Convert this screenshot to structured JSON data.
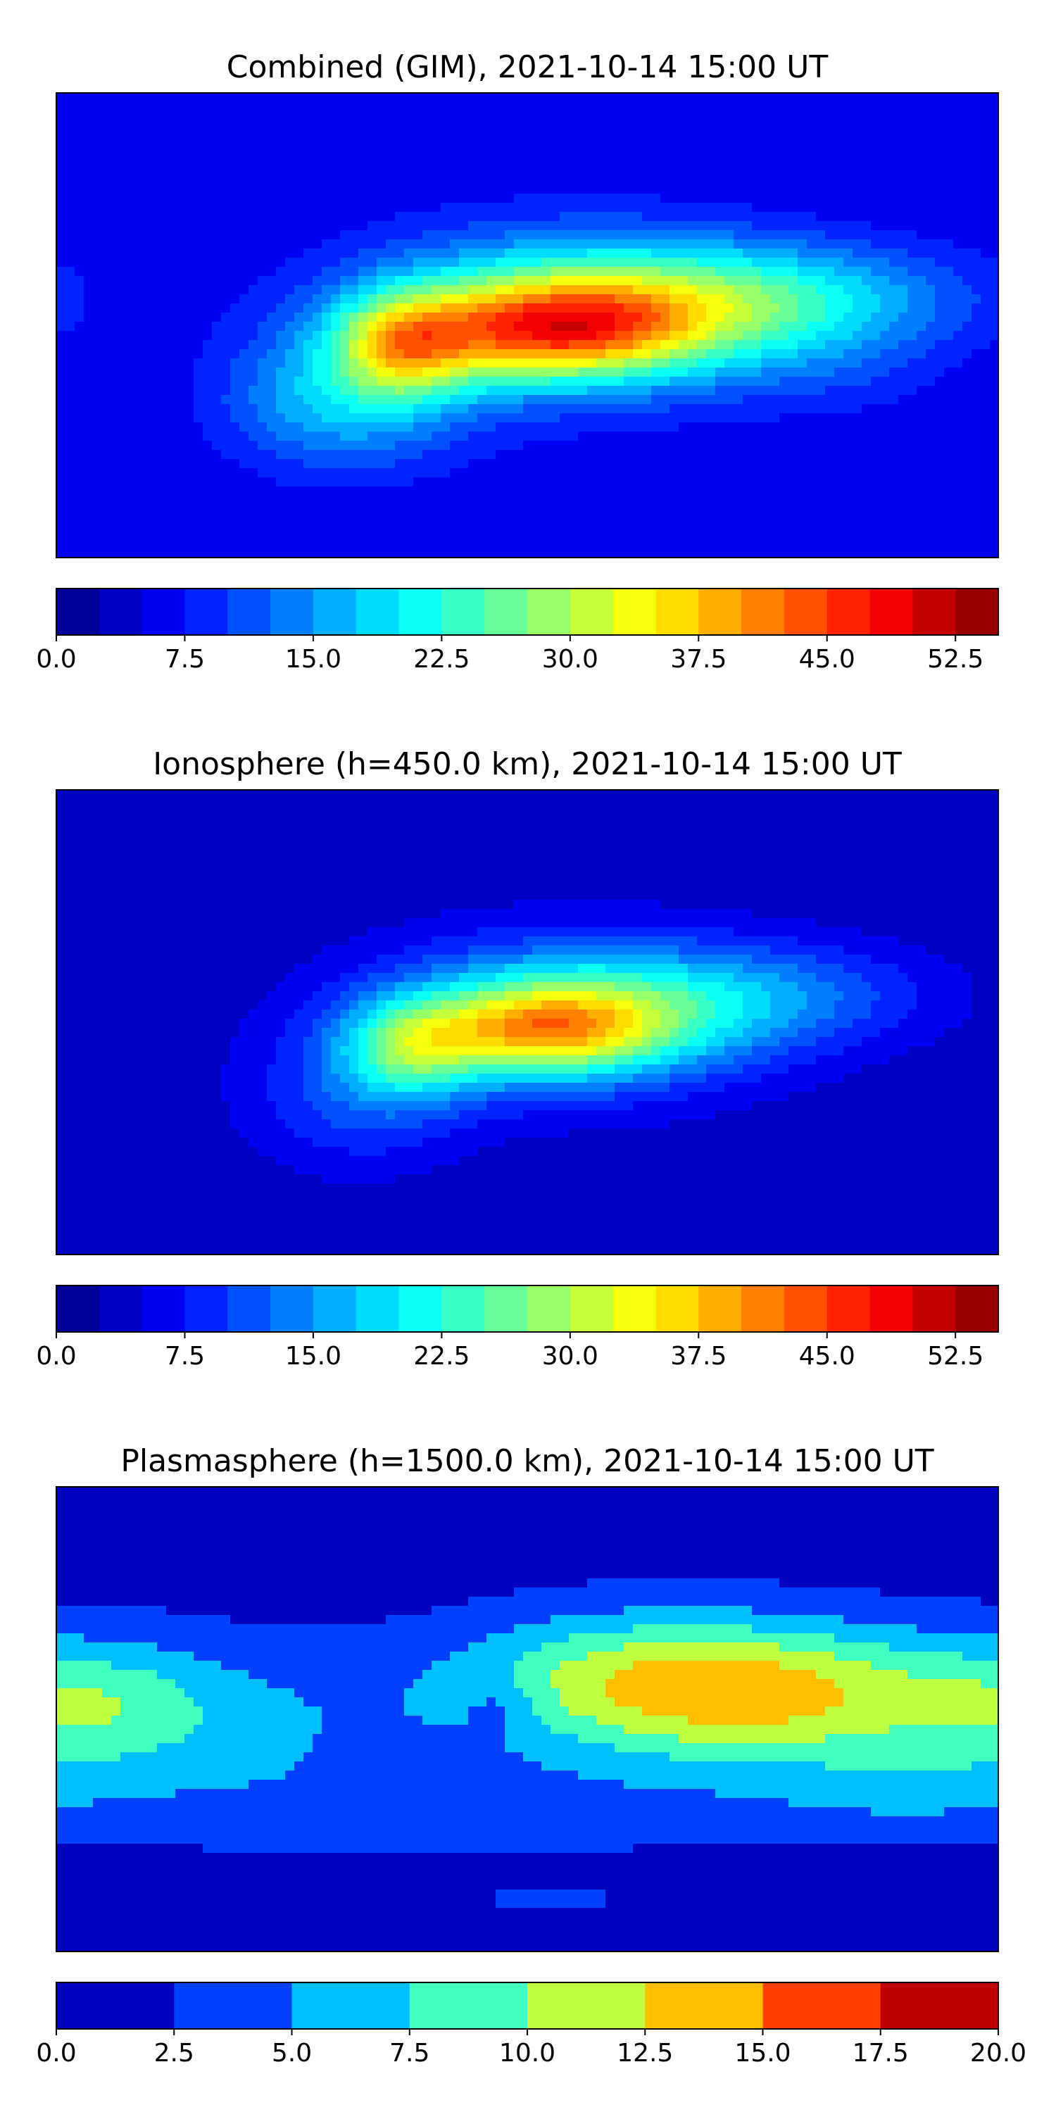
{
  "panels": [
    {
      "title": "Combined (GIM), 2021-10-14 15:00 UT",
      "colorbar": {
        "vmin": 0.0,
        "vmax": 55.0,
        "levels": 22,
        "ticks": [
          "0.0",
          "7.5",
          "15.0",
          "22.5",
          "30.0",
          "37.5",
          "45.0",
          "52.5"
        ],
        "tick_values": [
          0.0,
          7.5,
          15.0,
          22.5,
          30.0,
          37.5,
          45.0,
          52.5
        ]
      }
    },
    {
      "title": "Ionosphere  (h=450.0 km), 2021-10-14 15:00 UT",
      "colorbar": {
        "vmin": 0.0,
        "vmax": 55.0,
        "levels": 22,
        "ticks": [
          "0.0",
          "7.5",
          "15.0",
          "22.5",
          "30.0",
          "37.5",
          "45.0",
          "52.5"
        ],
        "tick_values": [
          0.0,
          7.5,
          15.0,
          22.5,
          30.0,
          37.5,
          45.0,
          52.5
        ]
      }
    },
    {
      "title": "Plasmasphere (h=1500.0 km), 2021-10-14 15:00 UT",
      "colorbar": {
        "vmin": 0.0,
        "vmax": 20.0,
        "levels": 8,
        "ticks": [
          "0.0",
          "2.5",
          "5.0",
          "7.5",
          "10.0",
          "12.5",
          "15.0",
          "17.5",
          "20.0"
        ],
        "tick_values": [
          0.0,
          2.5,
          5.0,
          7.5,
          10.0,
          12.5,
          15.0,
          17.5,
          20.0
        ]
      }
    }
  ],
  "colormap": "jet",
  "map": {
    "projection": "plate-carree",
    "coastlines": true,
    "grid": false
  }
}
